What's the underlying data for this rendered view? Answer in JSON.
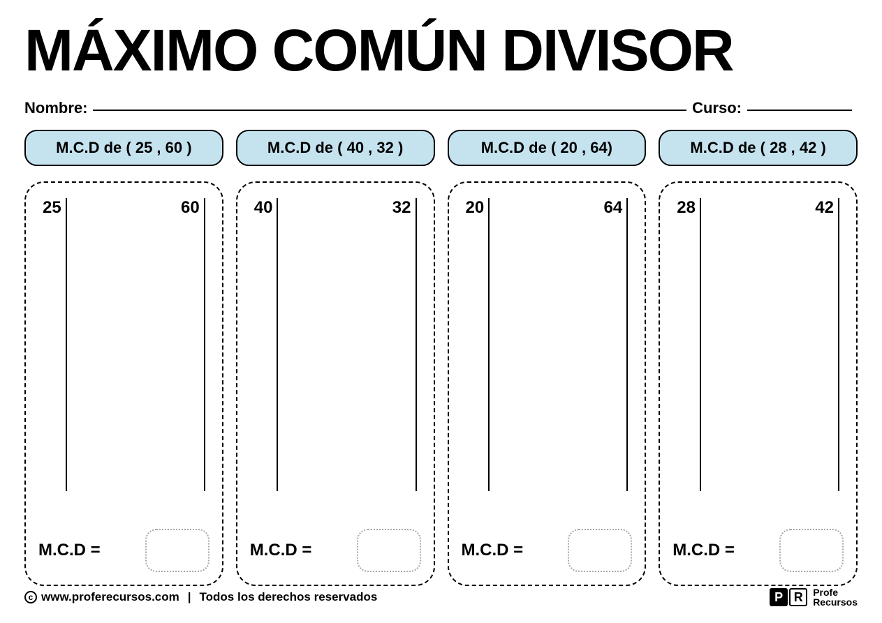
{
  "title": "MÁXIMO COMÚN DIVISOR",
  "labels": {
    "name": "Nombre:",
    "course": "Curso:",
    "result": "M.C.D ="
  },
  "colors": {
    "pill_bg": "#c5e3ef",
    "pill_border": "#000000",
    "dash_border": "#000000",
    "dotted_border": "#a8a8a8",
    "background": "#ffffff",
    "text": "#000000"
  },
  "problems": [
    {
      "heading": "M.C.D de ( 25 , 60 )",
      "num_a": "25",
      "num_b": "60"
    },
    {
      "heading": "M.C.D de ( 40 , 32 )",
      "num_a": "40",
      "num_b": "32"
    },
    {
      "heading": "M.C.D de ( 20 , 64)",
      "num_a": "20",
      "num_b": "64"
    },
    {
      "heading": "M.C.D de ( 28 , 42 )",
      "num_a": "28",
      "num_b": "42"
    }
  ],
  "footer": {
    "url": "www.proferecursos.com",
    "rights": "Todos los derechos reservados",
    "brand_line1": "Profe",
    "brand_line2": "Recursos",
    "badge_p": "P",
    "badge_r": "R"
  }
}
